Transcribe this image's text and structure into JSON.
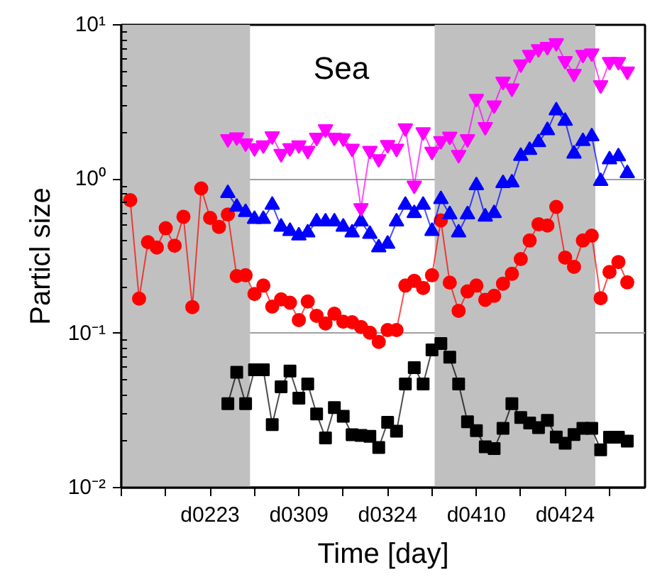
{
  "chart_data": {
    "type": "line",
    "title": "Sea",
    "xlabel": "Time [day]",
    "ylabel": "Particl size",
    "log": "y",
    "grid": "y",
    "categories": [
      null,
      null,
      null,
      null,
      null,
      null,
      null,
      null,
      null,
      null,
      "d0223",
      null,
      null,
      null,
      null,
      null,
      null,
      null,
      null,
      null,
      "d0309",
      null,
      null,
      null,
      null,
      null,
      null,
      null,
      null,
      null,
      "d0324",
      null,
      null,
      null,
      null,
      null,
      null,
      null,
      null,
      null,
      "d0410",
      null,
      null,
      null,
      null,
      null,
      null,
      null,
      null,
      null,
      "d0424",
      null,
      null,
      null,
      null,
      null,
      null,
      null
    ],
    "ylim": [
      0.01,
      10
    ],
    "yticks": [
      {
        "value": 0.01,
        "label": "10⁻²"
      },
      {
        "value": 0.1,
        "label": "10⁻¹"
      },
      {
        "value": 1,
        "label": "10⁰"
      },
      {
        "value": 10,
        "label": "10¹"
      }
    ],
    "series": [
      {
        "color": "#000000",
        "marker": "square",
        "values": [
          null,
          null,
          null,
          null,
          null,
          null,
          null,
          null,
          null,
          null,
          null,
          null,
          0.035,
          0.056,
          0.035,
          0.058,
          0.058,
          0.0256,
          0.045,
          0.057,
          0.038,
          0.047,
          0.03,
          0.021,
          0.033,
          0.029,
          0.022,
          0.0218,
          0.0215,
          0.0182,
          0.0265,
          0.0232,
          0.047,
          0.06,
          0.047,
          0.078,
          0.086,
          0.07,
          0.047,
          0.0267,
          0.0234,
          0.0184,
          0.0179,
          0.0242,
          0.035,
          0.0285,
          0.0262,
          0.0245,
          0.0273,
          0.0213,
          0.0194,
          0.0221,
          0.0242,
          0.0242,
          0.0176,
          0.0212,
          0.0212,
          0.02
        ]
      },
      {
        "color": "#ff0000",
        "marker": "circle",
        "values": [
          null,
          0.73,
          0.168,
          0.39,
          0.36,
          0.48,
          0.37,
          0.57,
          0.148,
          0.87,
          0.56,
          0.49,
          0.59,
          0.235,
          0.238,
          0.18,
          0.204,
          0.149,
          0.166,
          0.158,
          0.122,
          0.161,
          0.13,
          0.116,
          0.134,
          0.119,
          0.118,
          0.11,
          0.101,
          0.088,
          0.105,
          0.105,
          0.204,
          0.219,
          0.197,
          0.238,
          0.54,
          0.213,
          0.14,
          0.187,
          0.204,
          0.165,
          0.175,
          0.21,
          0.243,
          0.303,
          0.4,
          0.51,
          0.5,
          0.66,
          0.31,
          0.27,
          0.4,
          0.43,
          0.169,
          0.25,
          0.29,
          0.214
        ]
      },
      {
        "color": "#0000ff",
        "marker": "triangle",
        "values": [
          null,
          null,
          null,
          null,
          null,
          null,
          null,
          null,
          null,
          null,
          null,
          null,
          0.81,
          0.66,
          0.61,
          0.55,
          0.55,
          0.68,
          0.49,
          0.46,
          0.43,
          0.45,
          0.53,
          0.53,
          0.53,
          0.49,
          0.45,
          0.53,
          0.44,
          0.36,
          0.38,
          0.53,
          0.68,
          0.6,
          0.68,
          0.46,
          0.74,
          0.59,
          0.45,
          0.59,
          0.91,
          0.57,
          0.6,
          0.94,
          0.95,
          1.41,
          1.54,
          1.73,
          2.07,
          2.78,
          2.38,
          1.46,
          1.76,
          1.89,
          0.97,
          1.34,
          1.4,
          1.09
        ]
      },
      {
        "color": "#ff00ff",
        "marker": "triangle",
        "values": [
          null,
          null,
          null,
          null,
          null,
          null,
          null,
          null,
          null,
          null,
          null,
          null,
          1.82,
          1.87,
          1.71,
          1.59,
          1.66,
          1.9,
          1.46,
          1.59,
          1.66,
          1.53,
          1.86,
          2.11,
          1.86,
          1.84,
          1.58,
          0.65,
          1.53,
          1.35,
          1.67,
          1.58,
          2.14,
          0.91,
          2.02,
          1.51,
          1.77,
          1.89,
          1.44,
          1.82,
          3.32,
          2.18,
          3.01,
          4.29,
          3.88,
          5.56,
          6.41,
          6.98,
          7.21,
          7.64,
          5.84,
          4.83,
          6.41,
          6.55,
          4.07,
          5.77,
          5.77,
          5.0
        ]
      }
    ]
  }
}
